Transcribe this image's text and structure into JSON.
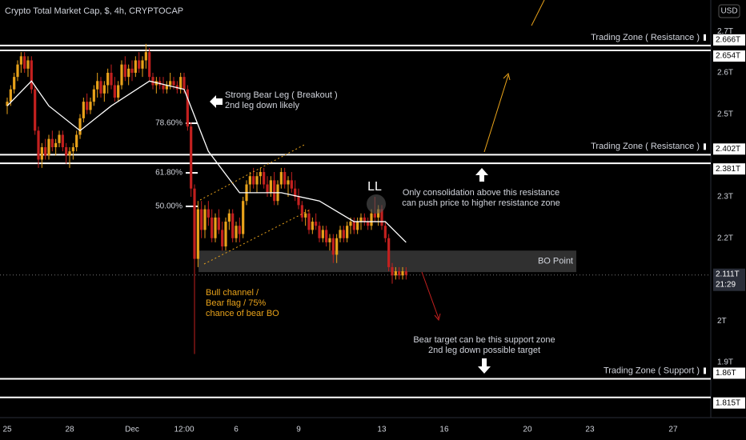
{
  "chart_data": {
    "type": "candlestick",
    "title": "Crypto Total Market Cap, $, 4h, CRYPTOCAP",
    "currency_badge": "USD",
    "up_color": "#e8a21a",
    "down_color": "#c3201f",
    "candles": [
      [
        2.52,
        2.54,
        2.5,
        2.53
      ],
      [
        2.53,
        2.57,
        2.52,
        2.56
      ],
      [
        2.56,
        2.6,
        2.55,
        2.59
      ],
      [
        2.59,
        2.63,
        2.58,
        2.62
      ],
      [
        2.62,
        2.65,
        2.6,
        2.64
      ],
      [
        2.64,
        2.65,
        2.6,
        2.61
      ],
      [
        2.61,
        2.64,
        2.59,
        2.63
      ],
      [
        2.63,
        2.64,
        2.55,
        2.56
      ],
      [
        2.56,
        2.57,
        2.45,
        2.46
      ],
      [
        2.46,
        2.47,
        2.37,
        2.39
      ],
      [
        2.39,
        2.43,
        2.37,
        2.42
      ],
      [
        2.42,
        2.44,
        2.39,
        2.4
      ],
      [
        2.4,
        2.45,
        2.39,
        2.44
      ],
      [
        2.44,
        2.46,
        2.41,
        2.42
      ],
      [
        2.42,
        2.44,
        2.4,
        2.43
      ],
      [
        2.43,
        2.46,
        2.42,
        2.45
      ],
      [
        2.45,
        2.46,
        2.41,
        2.42
      ],
      [
        2.42,
        2.43,
        2.38,
        2.4
      ],
      [
        2.4,
        2.42,
        2.37,
        2.41
      ],
      [
        2.41,
        2.43,
        2.39,
        2.42
      ],
      [
        2.42,
        2.46,
        2.41,
        2.45
      ],
      [
        2.45,
        2.5,
        2.44,
        2.49
      ],
      [
        2.49,
        2.54,
        2.48,
        2.53
      ],
      [
        2.53,
        2.55,
        2.5,
        2.51
      ],
      [
        2.51,
        2.54,
        2.5,
        2.53
      ],
      [
        2.53,
        2.57,
        2.52,
        2.56
      ],
      [
        2.56,
        2.6,
        2.54,
        2.58
      ],
      [
        2.58,
        2.59,
        2.54,
        2.55
      ],
      [
        2.55,
        2.58,
        2.53,
        2.57
      ],
      [
        2.57,
        2.61,
        2.55,
        2.6
      ],
      [
        2.6,
        2.62,
        2.56,
        2.57
      ],
      [
        2.57,
        2.59,
        2.53,
        2.54
      ],
      [
        2.54,
        2.58,
        2.53,
        2.57
      ],
      [
        2.57,
        2.63,
        2.56,
        2.62
      ],
      [
        2.62,
        2.64,
        2.58,
        2.59
      ],
      [
        2.59,
        2.62,
        2.57,
        2.61
      ],
      [
        2.61,
        2.63,
        2.58,
        2.6
      ],
      [
        2.6,
        2.64,
        2.59,
        2.63
      ],
      [
        2.63,
        2.65,
        2.6,
        2.61
      ],
      [
        2.61,
        2.64,
        2.59,
        2.63
      ],
      [
        2.63,
        2.67,
        2.61,
        2.65
      ],
      [
        2.65,
        2.66,
        2.58,
        2.59
      ],
      [
        2.59,
        2.6,
        2.56,
        2.57
      ],
      [
        2.57,
        2.59,
        2.55,
        2.58
      ],
      [
        2.58,
        2.59,
        2.56,
        2.57
      ],
      [
        2.57,
        2.59,
        2.55,
        2.56
      ],
      [
        2.56,
        2.58,
        2.55,
        2.57
      ],
      [
        2.57,
        2.6,
        2.56,
        2.58
      ],
      [
        2.58,
        2.59,
        2.56,
        2.57
      ],
      [
        2.57,
        2.58,
        2.55,
        2.56
      ],
      [
        2.56,
        2.6,
        2.55,
        2.59
      ],
      [
        2.59,
        2.6,
        2.55,
        2.56
      ],
      [
        2.56,
        2.57,
        2.46,
        2.47
      ],
      [
        2.47,
        2.48,
        2.3,
        2.32
      ],
      [
        2.32,
        2.33,
        1.92,
        2.15
      ],
      [
        2.15,
        2.29,
        2.13,
        2.27
      ],
      [
        2.27,
        2.29,
        2.2,
        2.22
      ],
      [
        2.22,
        2.28,
        2.2,
        2.27
      ],
      [
        2.27,
        2.29,
        2.23,
        2.25
      ],
      [
        2.25,
        2.27,
        2.19,
        2.2
      ],
      [
        2.2,
        2.26,
        2.19,
        2.25
      ],
      [
        2.25,
        2.27,
        2.21,
        2.22
      ],
      [
        2.22,
        2.24,
        2.17,
        2.18
      ],
      [
        2.18,
        2.25,
        2.17,
        2.24
      ],
      [
        2.24,
        2.27,
        2.22,
        2.26
      ],
      [
        2.26,
        2.27,
        2.19,
        2.2
      ],
      [
        2.2,
        2.24,
        2.19,
        2.23
      ],
      [
        2.23,
        2.25,
        2.19,
        2.21
      ],
      [
        2.21,
        2.3,
        2.2,
        2.29
      ],
      [
        2.29,
        2.34,
        2.28,
        2.33
      ],
      [
        2.33,
        2.36,
        2.31,
        2.35
      ],
      [
        2.35,
        2.37,
        2.32,
        2.33
      ],
      [
        2.33,
        2.36,
        2.31,
        2.35
      ],
      [
        2.35,
        2.37,
        2.33,
        2.36
      ],
      [
        2.36,
        2.37,
        2.32,
        2.33
      ],
      [
        2.33,
        2.35,
        2.3,
        2.31
      ],
      [
        2.31,
        2.35,
        2.3,
        2.34
      ],
      [
        2.34,
        2.36,
        2.28,
        2.29
      ],
      [
        2.29,
        2.34,
        2.28,
        2.33
      ],
      [
        2.33,
        2.37,
        2.32,
        2.36
      ],
      [
        2.36,
        2.37,
        2.32,
        2.33
      ],
      [
        2.33,
        2.35,
        2.3,
        2.34
      ],
      [
        2.34,
        2.36,
        2.31,
        2.32
      ],
      [
        2.32,
        2.34,
        2.29,
        2.3
      ],
      [
        2.3,
        2.32,
        2.27,
        2.28
      ],
      [
        2.28,
        2.29,
        2.24,
        2.25
      ],
      [
        2.25,
        2.27,
        2.23,
        2.26
      ],
      [
        2.26,
        2.27,
        2.21,
        2.22
      ],
      [
        2.22,
        2.25,
        2.21,
        2.24
      ],
      [
        2.24,
        2.26,
        2.22,
        2.23
      ],
      [
        2.23,
        2.24,
        2.19,
        2.2
      ],
      [
        2.2,
        2.23,
        2.19,
        2.22
      ],
      [
        2.22,
        2.23,
        2.18,
        2.19
      ],
      [
        2.19,
        2.21,
        2.17,
        2.2
      ],
      [
        2.2,
        2.21,
        2.14,
        2.16
      ],
      [
        2.16,
        2.21,
        2.14,
        2.2
      ],
      [
        2.2,
        2.23,
        2.19,
        2.22
      ],
      [
        2.22,
        2.23,
        2.19,
        2.2
      ],
      [
        2.2,
        2.24,
        2.19,
        2.23
      ],
      [
        2.23,
        2.25,
        2.21,
        2.24
      ],
      [
        2.24,
        2.25,
        2.21,
        2.22
      ],
      [
        2.22,
        2.25,
        2.21,
        2.24
      ],
      [
        2.24,
        2.26,
        2.22,
        2.25
      ],
      [
        2.25,
        2.26,
        2.23,
        2.24
      ],
      [
        2.24,
        2.25,
        2.22,
        2.23
      ],
      [
        2.23,
        2.27,
        2.22,
        2.26
      ],
      [
        2.26,
        2.3,
        2.24,
        2.25
      ],
      [
        2.25,
        2.28,
        2.23,
        2.27
      ],
      [
        2.27,
        2.28,
        2.22,
        2.23
      ],
      [
        2.23,
        2.24,
        2.19,
        2.2
      ],
      [
        2.2,
        2.21,
        2.12,
        2.13
      ],
      [
        2.13,
        2.14,
        2.09,
        2.11
      ],
      [
        2.11,
        2.13,
        2.1,
        2.12
      ],
      [
        2.12,
        2.13,
        2.1,
        2.11
      ],
      [
        2.11,
        2.13,
        2.1,
        2.12
      ],
      [
        2.12,
        2.13,
        2.1,
        2.111
      ]
    ],
    "moving_average": {
      "color": "#ffffff",
      "x": [
        0,
        7,
        12,
        21,
        30,
        41,
        51,
        58,
        67,
        79,
        90,
        100,
        109,
        115
      ],
      "values": [
        2.52,
        2.58,
        2.52,
        2.46,
        2.52,
        2.58,
        2.56,
        2.41,
        2.31,
        2.31,
        2.29,
        2.24,
        2.24,
        2.19
      ]
    },
    "xlim": [
      -2.08,
      202.85
    ],
    "xticks": [
      {
        "value": 0,
        "label": "25"
      },
      {
        "value": 18,
        "label": "28"
      },
      {
        "value": 36,
        "label": "Dec"
      },
      {
        "value": 51,
        "label": "12:00"
      },
      {
        "value": 66,
        "label": "6"
      },
      {
        "value": 84,
        "label": "9"
      },
      {
        "value": 108,
        "label": "13"
      },
      {
        "value": 126,
        "label": "16"
      },
      {
        "value": 150,
        "label": "20"
      },
      {
        "value": 168,
        "label": "23"
      },
      {
        "value": 192,
        "label": "27"
      }
    ],
    "ylim": [
      1.77,
      2.776
    ],
    "yticks": [
      {
        "value": 2.7,
        "label": "2.7T"
      },
      {
        "value": 2.6,
        "label": "2.6T"
      },
      {
        "value": 2.5,
        "label": "2.5T"
      },
      {
        "value": 2.3,
        "label": "2.3T"
      },
      {
        "value": 2.2,
        "label": "2.2T"
      },
      {
        "value": 2.0,
        "label": "2T"
      },
      {
        "value": 1.9,
        "label": "1.9T"
      }
    ],
    "last_price": {
      "value": 2.111,
      "label": "2.111T",
      "countdown": "21:29"
    },
    "zones": [
      {
        "name": "Trading Zone ( Resistance )",
        "levels": [
          2.666,
          2.654
        ],
        "level_labels": [
          "2.666T",
          "2.654T"
        ]
      },
      {
        "name": "Trading Zone ( Resistance )",
        "levels": [
          2.402,
          2.381
        ],
        "level_labels": [
          "2.402T",
          "2.381T"
        ]
      },
      {
        "name": "Trading Zone ( Support )",
        "levels": [
          1.86,
          1.815
        ],
        "level_labels": [
          "1.86T",
          "1.815T"
        ]
      }
    ],
    "fib_levels": [
      {
        "label": "78.60%",
        "value": 2.478
      },
      {
        "label": "61.80%",
        "value": 2.358
      },
      {
        "label": "50.00%",
        "value": 2.277
      }
    ],
    "bo_zone": {
      "label": "BO Point",
      "high": 2.17,
      "low": 2.118
    },
    "annotations": {
      "breakout": [
        "Strong Bear Leg ( Breakout )",
        "2nd leg down likely"
      ],
      "low": "LL",
      "consolidation": [
        "Only consolidation above this resistance",
        "can push price to higher resistance zone"
      ],
      "channel": [
        "Bull channel /",
        "Bear flag / 75%",
        "chance of bear BO"
      ],
      "target": [
        "Bear target can be this support zone",
        "2nd leg down possible target"
      ]
    }
  }
}
